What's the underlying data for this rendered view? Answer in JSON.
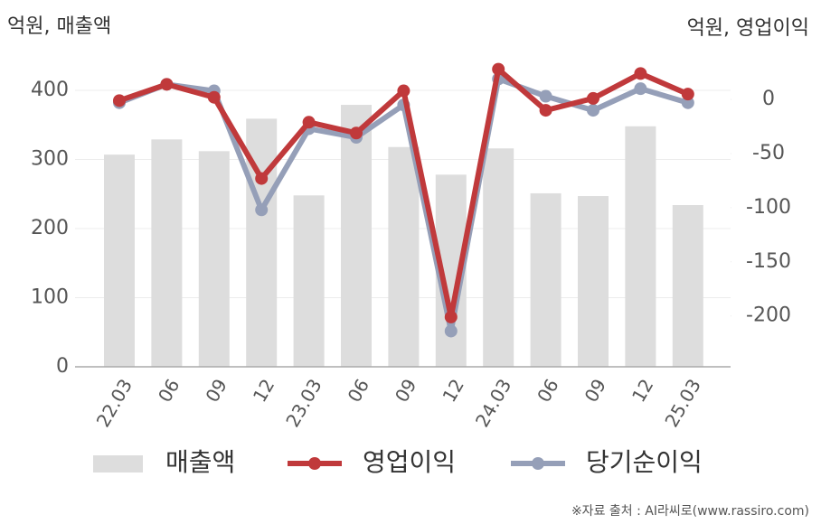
{
  "chart_data": {
    "type": "bar",
    "y_label": "억원, 매출액",
    "y2_label": "억원, 영업이익",
    "source": "※자료 출처 : AI라씨로(www.rassiro.com)",
    "categories": [
      "22.03",
      "06",
      "09",
      "12",
      "23.03",
      "06",
      "09",
      "12",
      "24.03",
      "06",
      "09",
      "12",
      "25.03"
    ],
    "series": [
      {
        "name": "매출액",
        "type": "bar",
        "color": "#dddddd",
        "values": [
          307,
          329,
          312,
          359,
          248,
          379,
          318,
          278,
          316,
          251,
          247,
          348,
          234
        ]
      },
      {
        "name": "영업이익",
        "type": "line",
        "axis": "y2",
        "color": "#c0393b",
        "values": [
          -1,
          14,
          2,
          -73,
          -21,
          -31,
          8,
          -201,
          28,
          -10,
          1,
          24,
          5
        ]
      },
      {
        "name": "당기순이익",
        "type": "line",
        "axis": "y2",
        "color": "#959fb8",
        "values": [
          -3,
          14,
          8,
          -102,
          -27,
          -35,
          -5,
          -214,
          19,
          3,
          -10,
          10,
          -3
        ]
      }
    ],
    "ylim": [
      0,
      440
    ],
    "yticks": [
      0,
      100,
      200,
      300,
      400
    ],
    "y2lim": [
      -247,
      34
    ],
    "y2ticks": [
      0,
      -50,
      -100,
      -150,
      -200
    ],
    "grid": true,
    "legend": "bottom"
  }
}
